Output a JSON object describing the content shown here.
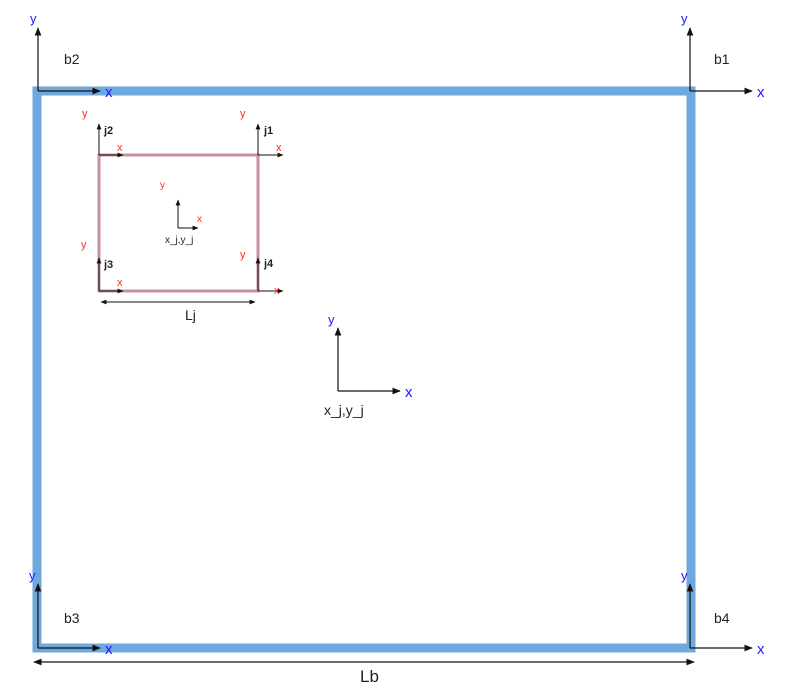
{
  "colors": {
    "base_outline": "#6fa8dc",
    "joint_outline": "#c9919b",
    "axis_line": "#111111",
    "x_label_blue": "#1a1aff",
    "y_label_blue": "#1a1aff",
    "x_label_red": "#ff2a2a",
    "y_label_red": "#ff2a2a",
    "text": "#222222"
  },
  "base_frames": {
    "b1": {
      "name": "b1",
      "x": "x",
      "y": "y"
    },
    "b2": {
      "name": "b2",
      "x": "x",
      "y": "y"
    },
    "b3": {
      "name": "b3",
      "x": "x",
      "y": "y"
    },
    "b4": {
      "name": "b4",
      "x": "x",
      "y": "y"
    }
  },
  "joint_frames": {
    "j1": {
      "name": "j1",
      "x": "x",
      "y": "y"
    },
    "j2": {
      "name": "j2",
      "x": "x",
      "y": "y"
    },
    "j3": {
      "name": "j3",
      "x": "x",
      "y": "y"
    },
    "j4": {
      "name": "j4",
      "x": "x",
      "y": "y"
    }
  },
  "joint_center": {
    "label": "x_j,y_j",
    "x": "x",
    "y": "y"
  },
  "base_center": {
    "label": "x_j,y_j",
    "x": "x",
    "y": "y"
  },
  "dimensions": {
    "joint_length": "Lj",
    "base_length": "Lb"
  }
}
